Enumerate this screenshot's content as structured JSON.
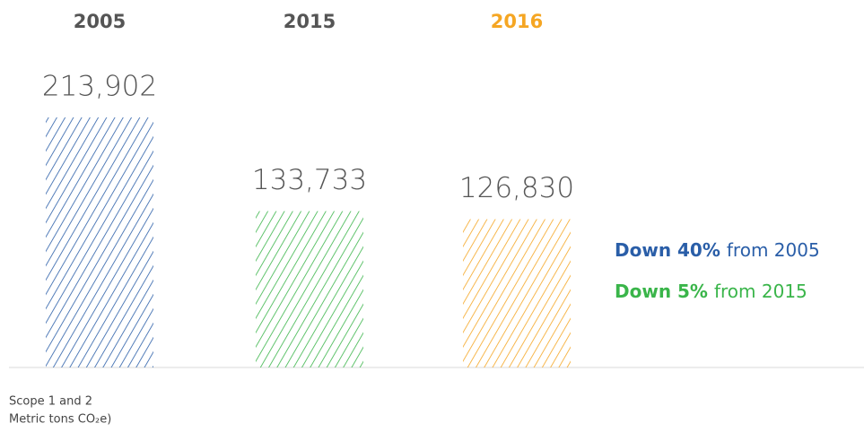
{
  "chart_data": {
    "type": "bar",
    "categories": [
      "2005",
      "2015",
      "2016"
    ],
    "category_colors": [
      "#555555",
      "#555555",
      "#f5a623"
    ],
    "values": [
      213902,
      133733,
      126830
    ],
    "value_labels": [
      "213,902",
      "133,733",
      "126,830"
    ],
    "colors": [
      "#2a5ea8",
      "#3ab54a",
      "#f5a623"
    ],
    "annotations": [
      {
        "bold": "Down 40%",
        "text": "from 2005",
        "color": "#2a5ea8"
      },
      {
        "bold": "Down 5%",
        "text": "from 2015",
        "color": "#3ab54a"
      }
    ],
    "footnote": [
      "Scope 1 and 2",
      "Metric tons CO₂e)"
    ]
  }
}
